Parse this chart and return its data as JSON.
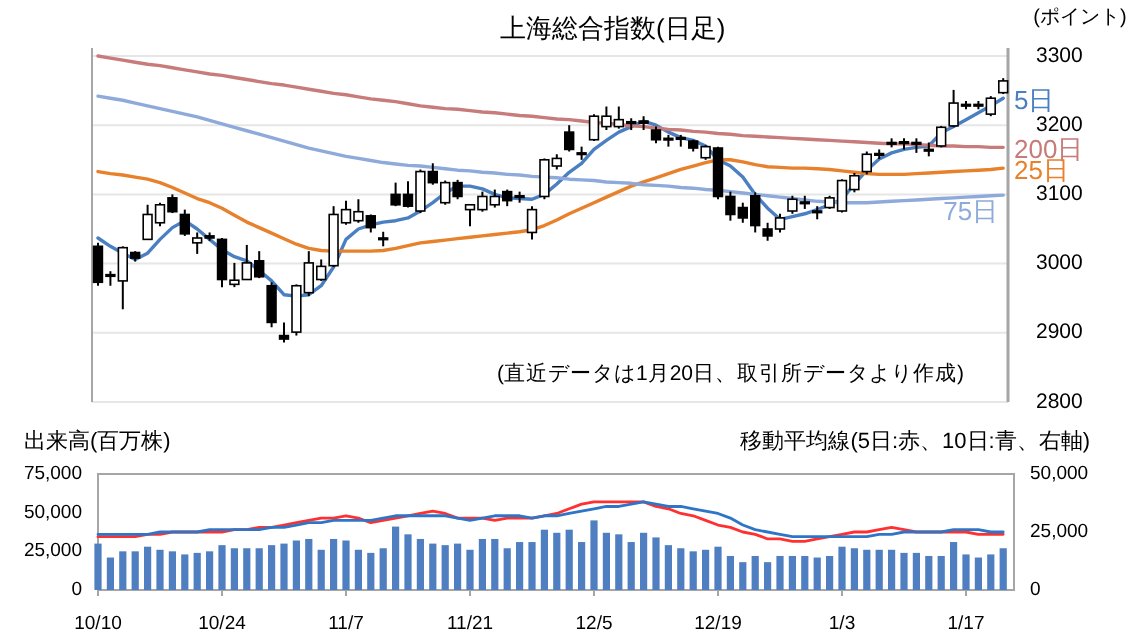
{
  "chart_data": [
    {
      "type": "candlestick",
      "title": "上海総合指数(日足)",
      "ylabel": "(ポイント)",
      "tick_labels": "y",
      "grid": "y",
      "categories": [
        null,
        null,
        null,
        null,
        null,
        null,
        null,
        null,
        null,
        null,
        null,
        null,
        null,
        null,
        null,
        null,
        null,
        null,
        null,
        null,
        null,
        null,
        null,
        null,
        null,
        null,
        null,
        null,
        null,
        null,
        null,
        null,
        null,
        null,
        null,
        null,
        null,
        null,
        null,
        null,
        null,
        null,
        null,
        null,
        null,
        null,
        null,
        null,
        null,
        null,
        null,
        null,
        null,
        null,
        null,
        null,
        null,
        null,
        null,
        null,
        null,
        null,
        null,
        null,
        null,
        null,
        null,
        null,
        null,
        null,
        null,
        null,
        null,
        null
      ],
      "ylim": [
        2800,
        3300
      ],
      "yticks": [
        2800,
        2900,
        3000,
        3100,
        3200,
        3300
      ],
      "annotations": [
        "(直近データは1月20日、取引所データより作成)"
      ],
      "ohlc": [
        [
          3025,
          3030,
          2968,
          2973
        ],
        [
          2984,
          2989,
          2968,
          2982
        ],
        [
          2975,
          3025,
          2934,
          3023
        ],
        [
          3016,
          3018,
          3003,
          3008
        ],
        [
          3035,
          3085,
          3035,
          3071
        ],
        [
          3059,
          3088,
          3054,
          3085
        ],
        [
          3095,
          3100,
          3073,
          3075
        ],
        [
          3071,
          3078,
          3040,
          3043
        ],
        [
          3030,
          3045,
          3014,
          3037
        ],
        [
          3040,
          3045,
          3033,
          3037
        ],
        [
          3035,
          3037,
          2966,
          2977
        ],
        [
          2970,
          3001,
          2966,
          2976
        ],
        [
          2977,
          3027,
          2977,
          3001
        ],
        [
          3004,
          3018,
          2979,
          2981
        ],
        [
          2968,
          2973,
          2908,
          2915
        ],
        [
          2896,
          2915,
          2886,
          2891
        ],
        [
          2901,
          2970,
          2896,
          2968
        ],
        [
          2958,
          3018,
          2953,
          3001
        ],
        [
          2977,
          3006,
          2975,
          2996
        ],
        [
          2997,
          3083,
          2995,
          3071
        ],
        [
          3059,
          3091,
          3056,
          3078
        ],
        [
          3062,
          3093,
          3059,
          3075
        ],
        [
          3069,
          3071,
          3045,
          3052
        ],
        [
          3037,
          3046,
          3025,
          3035
        ],
        [
          3100,
          3117,
          3083,
          3085
        ],
        [
          3100,
          3119,
          3081,
          3083
        ],
        [
          3076,
          3136,
          3073,
          3133
        ],
        [
          3133,
          3145,
          3114,
          3117
        ],
        [
          3088,
          3120,
          3085,
          3117
        ],
        [
          3117,
          3121,
          3093,
          3097
        ],
        [
          3078,
          3085,
          3054,
          3085
        ],
        [
          3078,
          3104,
          3075,
          3097
        ],
        [
          3085,
          3107,
          3081,
          3097
        ],
        [
          3104,
          3107,
          3083,
          3091
        ],
        [
          3098,
          3104,
          3088,
          3097
        ],
        [
          3045,
          3083,
          3035,
          3078
        ],
        [
          3097,
          3152,
          3093,
          3150
        ],
        [
          3141,
          3158,
          3136,
          3152
        ],
        [
          3190,
          3200,
          3162,
          3165
        ],
        [
          3160,
          3169,
          3150,
          3158
        ],
        [
          3179,
          3216,
          3177,
          3213
        ],
        [
          3198,
          3227,
          3193,
          3213
        ],
        [
          3198,
          3227,
          3195,
          3208
        ],
        [
          3205,
          3210,
          3193,
          3203
        ],
        [
          3206,
          3213,
          3193,
          3203
        ],
        [
          3193,
          3198,
          3174,
          3179
        ],
        [
          3181,
          3186,
          3169,
          3179
        ],
        [
          3182,
          3186,
          3169,
          3180
        ],
        [
          3177,
          3179,
          3162,
          3167
        ],
        [
          3153,
          3171,
          3150,
          3169
        ],
        [
          3167,
          3169,
          3093,
          3097
        ],
        [
          3097,
          3104,
          3062,
          3071
        ],
        [
          3081,
          3088,
          3059,
          3066
        ],
        [
          3098,
          3103,
          3045,
          3055
        ],
        [
          3050,
          3059,
          3033,
          3040
        ],
        [
          3050,
          3072,
          3045,
          3066
        ],
        [
          3076,
          3098,
          3072,
          3093
        ],
        [
          3089,
          3098,
          3079,
          3088
        ],
        [
          3076,
          3083,
          3064,
          3075
        ],
        [
          3081,
          3098,
          3079,
          3095
        ],
        [
          3076,
          3122,
          3074,
          3120
        ],
        [
          3107,
          3131,
          3103,
          3127
        ],
        [
          3133,
          3162,
          3129,
          3158
        ],
        [
          3159,
          3165,
          3151,
          3158
        ],
        [
          3175,
          3181,
          3168,
          3174
        ],
        [
          3176,
          3181,
          3165,
          3175
        ],
        [
          3175,
          3181,
          3160,
          3174
        ],
        [
          3165,
          3175,
          3155,
          3164
        ],
        [
          3170,
          3199,
          3168,
          3197
        ],
        [
          3199,
          3251,
          3197,
          3232
        ],
        [
          3230,
          3235,
          3223,
          3229
        ],
        [
          3230,
          3235,
          3223,
          3228
        ],
        [
          3216,
          3242,
          3213,
          3239
        ],
        [
          3247,
          3268,
          3245,
          3264
        ]
      ],
      "series": [
        {
          "name": "5日",
          "type": "line",
          "color": "#4a7fc1",
          "values": [
            3037,
            3025,
            3015,
            3006,
            3015,
            3035,
            3052,
            3062,
            3050,
            3035,
            3020,
            3010,
            3004,
            2990,
            2975,
            2955,
            2953,
            2955,
            2968,
            2995,
            3035,
            3050,
            3056,
            3060,
            3062,
            3066,
            3076,
            3088,
            3102,
            3112,
            3112,
            3108,
            3100,
            3095,
            3094,
            3093,
            3100,
            3115,
            3132,
            3145,
            3165,
            3178,
            3190,
            3198,
            3206,
            3200,
            3190,
            3182,
            3178,
            3170,
            3150,
            3141,
            3125,
            3100,
            3080,
            3064,
            3068,
            3072,
            3078,
            3085,
            3093,
            3115,
            3135,
            3151,
            3160,
            3165,
            3168,
            3170,
            3189,
            3198,
            3208,
            3218,
            3228,
            3239
          ]
        },
        {
          "name": "200日",
          "type": "line",
          "color": "#c77b7b",
          "values": [
            3300,
            3297,
            3294,
            3291,
            3288,
            3286,
            3283,
            3280,
            3277,
            3274,
            3272,
            3269,
            3266,
            3263,
            3260,
            3258,
            3255,
            3252,
            3249,
            3246,
            3244,
            3241,
            3238,
            3236,
            3234,
            3231,
            3228,
            3226,
            3224,
            3223,
            3221,
            3219,
            3218,
            3216,
            3214,
            3213,
            3211,
            3209,
            3208,
            3206,
            3204,
            3203,
            3201,
            3199,
            3198,
            3196,
            3194,
            3193,
            3191,
            3190,
            3188,
            3187,
            3185,
            3184,
            3183,
            3182,
            3181,
            3180,
            3179,
            3178,
            3177,
            3176,
            3175,
            3174,
            3173,
            3173,
            3172,
            3171,
            3170,
            3170,
            3169,
            3169,
            3168,
            3168
          ]
        },
        {
          "name": "25日",
          "type": "line",
          "color": "#e8812c",
          "values": [
            3133,
            3130,
            3128,
            3125,
            3122,
            3117,
            3110,
            3102,
            3094,
            3088,
            3080,
            3070,
            3060,
            3052,
            3044,
            3036,
            3028,
            3022,
            3019,
            3018,
            3018,
            3018,
            3018,
            3019,
            3022,
            3026,
            3030,
            3032,
            3034,
            3036,
            3038,
            3040,
            3042,
            3044,
            3046,
            3049,
            3055,
            3063,
            3072,
            3080,
            3088,
            3096,
            3104,
            3112,
            3118,
            3124,
            3130,
            3136,
            3141,
            3146,
            3150,
            3150,
            3147,
            3143,
            3140,
            3139,
            3138,
            3138,
            3137,
            3136,
            3134,
            3132,
            3130,
            3129,
            3129,
            3129,
            3130,
            3131,
            3132,
            3133,
            3134,
            3135,
            3136,
            3138
          ]
        },
        {
          "name": "75日",
          "type": "line",
          "color": "#8eaadb",
          "values": [
            3242,
            3239,
            3236,
            3232,
            3228,
            3224,
            3220,
            3216,
            3212,
            3207,
            3202,
            3197,
            3192,
            3187,
            3182,
            3177,
            3172,
            3167,
            3163,
            3159,
            3155,
            3152,
            3149,
            3146,
            3144,
            3142,
            3141,
            3139,
            3137,
            3135,
            3134,
            3132,
            3131,
            3129,
            3128,
            3126,
            3125,
            3124,
            3122,
            3121,
            3120,
            3118,
            3117,
            3116,
            3114,
            3113,
            3112,
            3110,
            3109,
            3107,
            3106,
            3104,
            3102,
            3100,
            3098,
            3096,
            3094,
            3092,
            3090,
            3089,
            3088,
            3088,
            3088,
            3089,
            3090,
            3091,
            3092,
            3093,
            3094,
            3095,
            3096,
            3097,
            3098,
            3099
          ]
        }
      ]
    },
    {
      "type": "bar",
      "ylabel": "出来高(百万株)",
      "y2label": "移動平均線(5日:赤、10日:青、右軸)",
      "grid": false,
      "categories": [
        "10/10",
        null,
        null,
        null,
        null,
        null,
        null,
        null,
        null,
        null,
        "10/24",
        null,
        null,
        null,
        null,
        null,
        null,
        null,
        null,
        null,
        "11/7",
        null,
        null,
        null,
        null,
        null,
        null,
        null,
        null,
        null,
        "11/21",
        null,
        null,
        null,
        null,
        null,
        null,
        null,
        null,
        null,
        "12/5",
        null,
        null,
        null,
        null,
        null,
        null,
        null,
        null,
        null,
        "12/19",
        null,
        null,
        null,
        null,
        null,
        null,
        null,
        null,
        null,
        "1/3",
        null,
        null,
        null,
        null,
        null,
        null,
        null,
        null,
        null,
        "1/17",
        null,
        null,
        null
      ],
      "ylim": [
        0,
        75000
      ],
      "yticks": [
        0,
        {
          "value": 25000,
          "label": "25,000"
        },
        {
          "value": 50000,
          "label": "50,000"
        },
        {
          "value": 75000,
          "label": "75,000"
        }
      ],
      "y2lim": [
        0,
        50000
      ],
      "y2ticks": [
        0,
        {
          "value": 25000,
          "label": "25,000"
        },
        {
          "value": 50000,
          "label": "50,000"
        }
      ],
      "series": [
        {
          "type": "bar",
          "color": "#4f7fc0",
          "values": [
            30000,
            21000,
            25000,
            25000,
            28000,
            26000,
            25000,
            23000,
            24000,
            25000,
            29000,
            27000,
            27000,
            27000,
            29000,
            30000,
            32000,
            33000,
            26000,
            33000,
            32000,
            26000,
            24000,
            27000,
            41000,
            36000,
            33000,
            30000,
            29000,
            30000,
            26000,
            33000,
            33000,
            27000,
            31000,
            31000,
            39000,
            37000,
            39000,
            31000,
            45000,
            37000,
            36000,
            31000,
            37000,
            34000,
            29000,
            27000,
            25000,
            26000,
            28000,
            22000,
            18000,
            22000,
            18000,
            22000,
            22000,
            22000,
            21000,
            22000,
            28000,
            27000,
            26000,
            26000,
            26000,
            24000,
            24000,
            22000,
            22000,
            31000,
            23000,
            21000,
            23000,
            27000
          ]
        },
        {
          "type": "line",
          "axis": "y2",
          "color": "#ff3030",
          "values": [
            23000,
            23000,
            23000,
            23000,
            24000,
            24000,
            25000,
            25000,
            25000,
            25000,
            25000,
            26000,
            26000,
            27000,
            27000,
            28000,
            29000,
            30000,
            31000,
            31000,
            32000,
            31000,
            29000,
            30000,
            31000,
            32000,
            33000,
            34000,
            33000,
            31000,
            31000,
            31000,
            30000,
            31000,
            31000,
            31000,
            32000,
            33000,
            35000,
            37000,
            38000,
            38000,
            38000,
            38000,
            38000,
            36000,
            35000,
            33000,
            32000,
            30000,
            28000,
            27000,
            25000,
            24000,
            22000,
            22000,
            21000,
            21000,
            22000,
            23000,
            24000,
            25000,
            25000,
            26000,
            27000,
            26000,
            25000,
            25000,
            25000,
            25000,
            25000,
            24000,
            24000,
            24000
          ]
        },
        {
          "type": "line",
          "axis": "y2",
          "color": "#2e75c7",
          "values": [
            24000,
            24000,
            24000,
            24000,
            24000,
            25000,
            25000,
            25000,
            25000,
            26000,
            26000,
            26000,
            26000,
            26000,
            27000,
            27000,
            28000,
            29000,
            29000,
            30000,
            30000,
            30000,
            30000,
            31000,
            32000,
            32000,
            32000,
            32000,
            32000,
            31000,
            30000,
            31000,
            32000,
            32000,
            32000,
            31000,
            32000,
            32000,
            33000,
            34000,
            35000,
            36000,
            36000,
            37000,
            38000,
            37000,
            36000,
            36000,
            35000,
            34000,
            33000,
            31000,
            28000,
            26000,
            25000,
            24000,
            23000,
            23000,
            23000,
            23000,
            23000,
            23000,
            23000,
            24000,
            24000,
            25000,
            25000,
            25000,
            25000,
            26000,
            26000,
            26000,
            25000,
            25000
          ]
        }
      ]
    }
  ]
}
